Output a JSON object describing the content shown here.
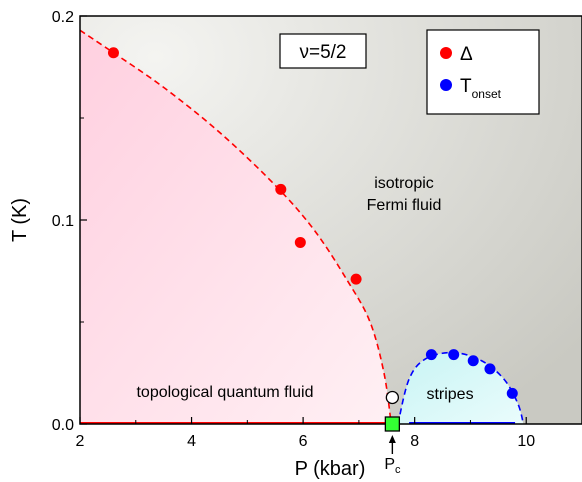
{
  "chart_data": {
    "type": "scatter",
    "title": "",
    "xlabel": "P (kbar)",
    "ylabel": "T (K)",
    "xlim": [
      2,
      11
    ],
    "ylim": [
      0,
      0.2
    ],
    "x_ticks": [
      2,
      4,
      6,
      8,
      10
    ],
    "x_tick_labels": [
      "2",
      "4",
      "6",
      "8",
      "10"
    ],
    "y_ticks": [
      0,
      0.1,
      0.2
    ],
    "y_tick_labels": [
      "0.0",
      "0.1",
      "0.2"
    ],
    "legend_position": "top-right",
    "annotation_box": "ν=5/2",
    "series": [
      {
        "name": "Δ",
        "color": "#ff0000",
        "marker": "circle",
        "points": [
          [
            2.6,
            0.182
          ],
          [
            5.6,
            0.115
          ],
          [
            5.95,
            0.089
          ],
          [
            6.95,
            0.071
          ]
        ]
      },
      {
        "name": "T",
        "name_subscript": "onset",
        "color": "#0000ff",
        "marker": "circle",
        "points": [
          [
            8.3,
            0.034
          ],
          [
            8.7,
            0.034
          ],
          [
            9.05,
            0.031
          ],
          [
            9.35,
            0.027
          ],
          [
            9.75,
            0.015
          ]
        ]
      }
    ],
    "fits": [
      {
        "color": "#ff0000",
        "style": "dashed",
        "points": [
          [
            2.0,
            0.193
          ],
          [
            2.6,
            0.182
          ],
          [
            3.5,
            0.165
          ],
          [
            4.5,
            0.143
          ],
          [
            5.5,
            0.117
          ],
          [
            6.2,
            0.095
          ],
          [
            6.8,
            0.07
          ],
          [
            7.2,
            0.05
          ],
          [
            7.45,
            0.025
          ],
          [
            7.58,
            0.0
          ]
        ]
      },
      {
        "color": "#0000ff",
        "style": "dashed",
        "points": [
          [
            7.7,
            0.0
          ],
          [
            7.9,
            0.022
          ],
          [
            8.2,
            0.032
          ],
          [
            8.7,
            0.035
          ],
          [
            9.2,
            0.031
          ],
          [
            9.6,
            0.022
          ],
          [
            9.85,
            0.01
          ],
          [
            9.95,
            0.0
          ]
        ]
      }
    ],
    "phase_lines": [
      {
        "color": "#ff0000",
        "from": 2.0,
        "to": 7.55,
        "y": 0
      },
      {
        "color": "#0000ff",
        "from": 7.9,
        "to": 9.8,
        "y": 0
      }
    ],
    "special_points": [
      {
        "name": "open-circle",
        "x": 7.6,
        "y": 0.013,
        "fill": "#ffffff",
        "stroke": "#000000"
      },
      {
        "name": "green-square",
        "x": 7.6,
        "y": 0.0,
        "fill": "#33ff33",
        "stroke": "#000000"
      }
    ],
    "pc_marker": {
      "x": 7.6,
      "label": "P",
      "subscript": "c"
    },
    "regions": [
      {
        "label_lines": [
          "isotropic",
          "Fermi fluid"
        ]
      },
      {
        "label_lines": [
          "topological quantum fluid"
        ]
      },
      {
        "label_lines": [
          "stripes"
        ]
      }
    ],
    "colors": {
      "background_gray": "#d6d6d0",
      "topological_pink": "#ffd0e0",
      "stripes_cyan": "#d8f8f8"
    }
  }
}
